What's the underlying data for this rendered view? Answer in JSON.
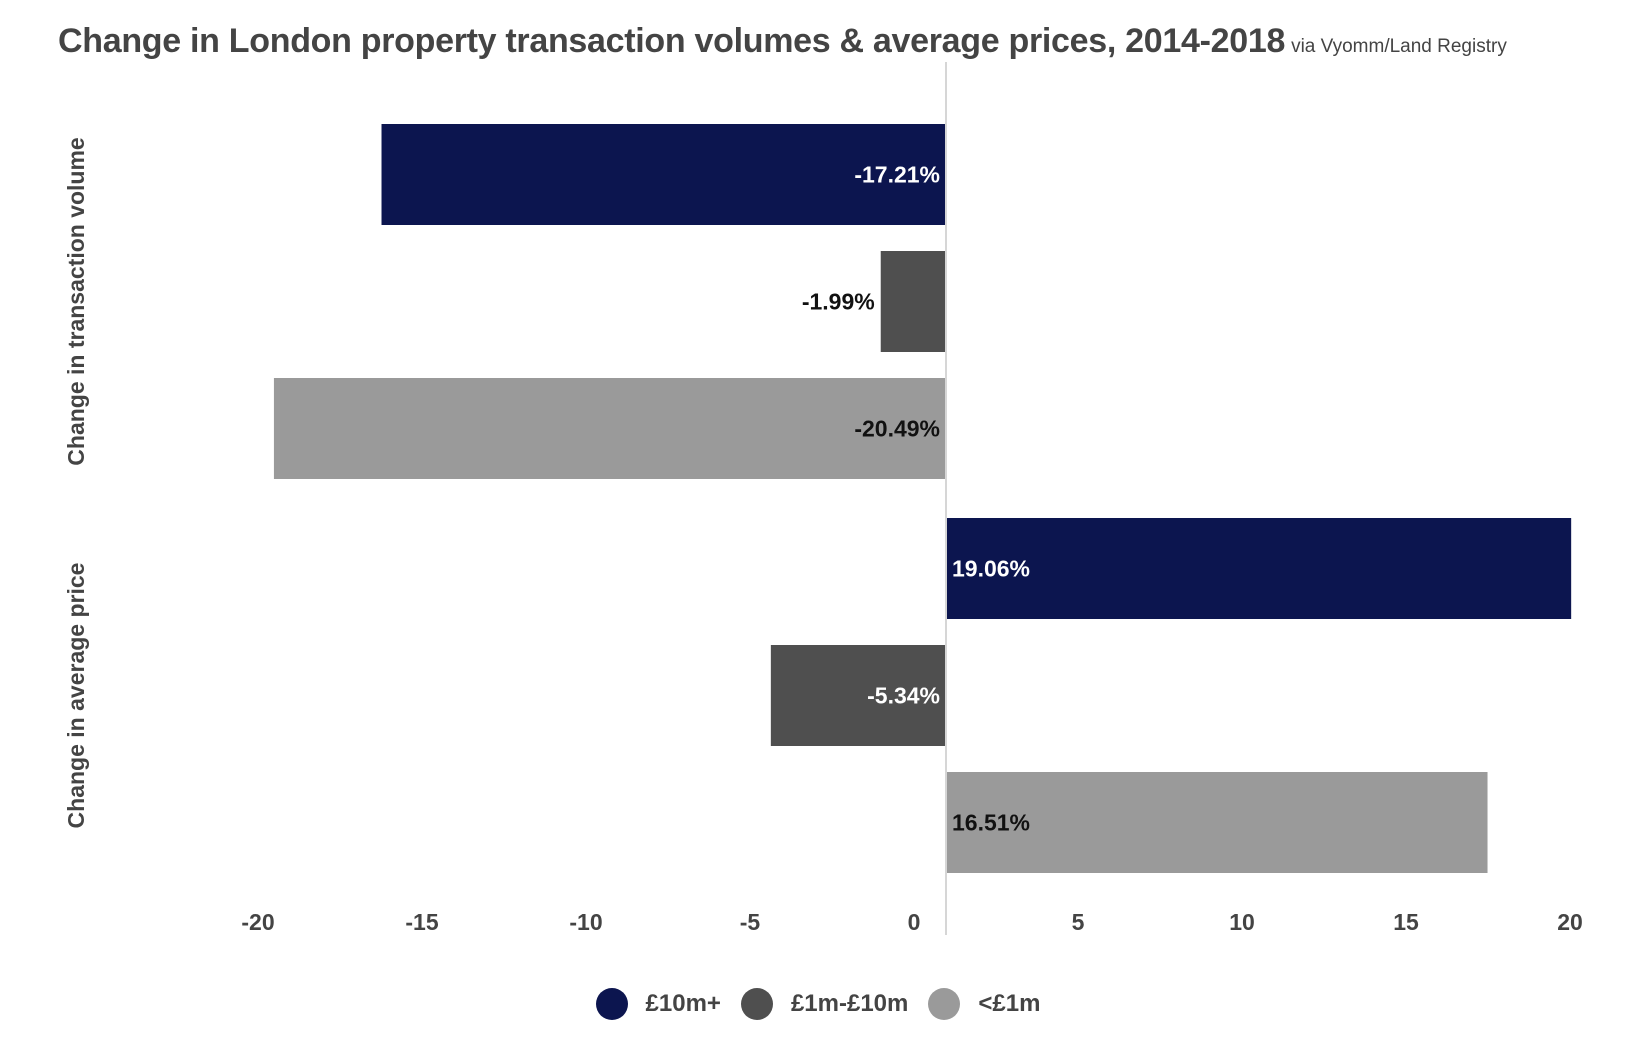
{
  "chart_data": {
    "type": "bar",
    "orientation": "horizontal",
    "title": "Change in London property transaction volumes & average prices, 2014-2018",
    "subtitle": "via Vyomm/Land Registry",
    "xlabel": "",
    "ylabel": "",
    "xlim": [
      -20,
      20
    ],
    "x_ticks": [
      -20,
      -15,
      -10,
      -5,
      0,
      5,
      10,
      15,
      20
    ],
    "grid": false,
    "legend_position": "bottom",
    "groups": [
      {
        "label": "Change in transaction volume",
        "bars": [
          {
            "series": "£10m+",
            "value": -17.21,
            "label": "-17.21%"
          },
          {
            "series": "£1m-£10m",
            "value": -1.99,
            "label": "-1.99%"
          },
          {
            "series": "<£1m",
            "value": -20.49,
            "label": "-20.49%"
          }
        ]
      },
      {
        "label": "Change in average price",
        "bars": [
          {
            "series": "£10m+",
            "value": 19.06,
            "label": "19.06%"
          },
          {
            "series": "£1m-£10m",
            "value": -5.34,
            "label": "-5.34%"
          },
          {
            "series": "<£1m",
            "value": 16.51,
            "label": "16.51%"
          }
        ]
      }
    ],
    "series": [
      {
        "name": "£10m+",
        "color": "#0c154f",
        "label_color": "#ffffff"
      },
      {
        "name": "£1m-£10m",
        "color": "#4f4f4f",
        "label_color": "#ffffff"
      },
      {
        "name": "<£1m",
        "color": "#9a9a9a",
        "label_color": "#111111"
      }
    ]
  },
  "title": "Change in London property transaction volumes & average prices, 2014-2018",
  "subtitle": "via Vyomm/Land Registry",
  "legend": [
    {
      "label": "£10m+",
      "color": "#0c154f"
    },
    {
      "label": "£1m-£10m",
      "color": "#4f4f4f"
    },
    {
      "label": "<£1m",
      "color": "#9a9a9a"
    }
  ]
}
